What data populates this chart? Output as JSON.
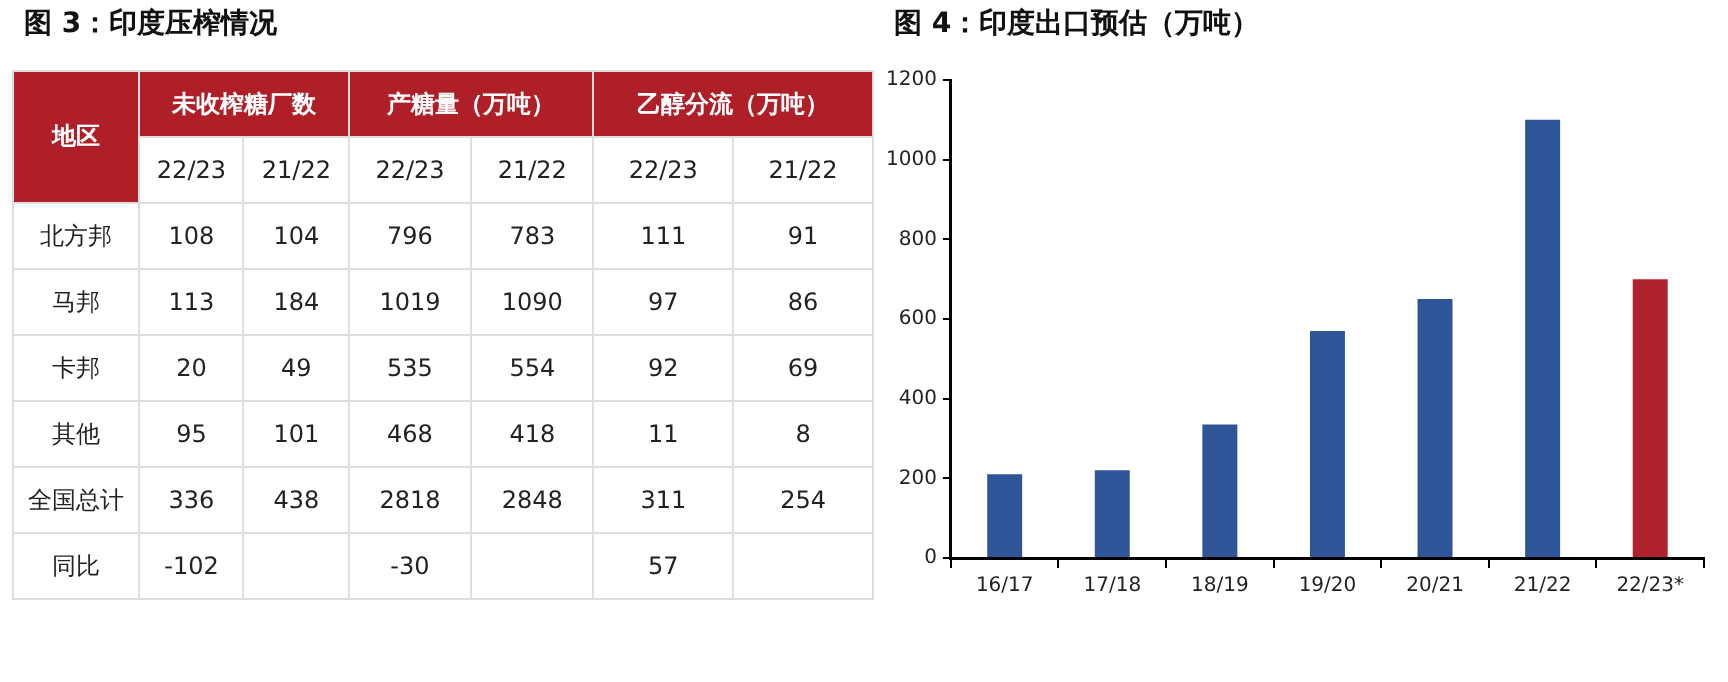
{
  "chart_data": [
    {
      "type": "heatmap",
      "title": "图 3：印度压榨情况",
      "categories": [
        "22/23",
        "21/22",
        "22/23",
        "21/22",
        "22/23",
        "21/22"
      ],
      "y_categories": [
        "北方邦",
        "马邦",
        "卡邦",
        "其他",
        "全国总计",
        "同比"
      ],
      "cells": [
        [
          108,
          104,
          796,
          783,
          111,
          91
        ],
        [
          113,
          184,
          1019,
          1090,
          97,
          86
        ],
        [
          20,
          49,
          535,
          554,
          92,
          69
        ],
        [
          95,
          101,
          468,
          418,
          11,
          8
        ],
        [
          336,
          438,
          2818,
          2848,
          311,
          254
        ],
        [
          -102,
          null,
          -30,
          null,
          57,
          null
        ]
      ],
      "data_labels": true,
      "annotations": [
        "地区",
        "未收榨糖厂数",
        "产糖量（万吨）",
        "乙醇分流（万吨）"
      ]
    },
    {
      "type": "bar",
      "title": "图 4：印度出口预估（万吨）",
      "categories": [
        "16/17",
        "17/18",
        "18/19",
        "19/20",
        "20/21",
        "21/22",
        "22/23*"
      ],
      "values": [
        210,
        220,
        335,
        570,
        650,
        1100,
        700
      ],
      "colors": [
        "#2e5597",
        "#2e5597",
        "#2e5597",
        "#2e5597",
        "#2e5597",
        "#2e5597",
        "#b0222b"
      ],
      "ylim": [
        0,
        1200
      ],
      "yticks": [
        0,
        200,
        400,
        600,
        800,
        1000,
        1200
      ],
      "grid": false
    }
  ]
}
